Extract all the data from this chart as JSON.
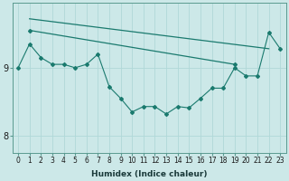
{
  "xlabel": "Humidex (Indice chaleur)",
  "bg_color": "#cce8e8",
  "grid_color": "#b0d8d8",
  "line_color": "#1a7a6e",
  "x_values": [
    0,
    1,
    2,
    3,
    4,
    5,
    6,
    7,
    8,
    9,
    10,
    11,
    12,
    13,
    14,
    15,
    16,
    17,
    18,
    19,
    20,
    21,
    22,
    23
  ],
  "series1": [
    9.0,
    9.35,
    9.15,
    9.05,
    9.05,
    9.0,
    9.05,
    9.2,
    8.72,
    8.55,
    8.35,
    8.43,
    8.43,
    8.32,
    8.43,
    8.41,
    8.55,
    8.7,
    8.7,
    9.0,
    8.88,
    8.88,
    9.52,
    9.28
  ],
  "series2_x": [
    1,
    22
  ],
  "series2_y": [
    9.72,
    9.28
  ],
  "series3_x": [
    1,
    19
  ],
  "series3_y": [
    9.55,
    9.05
  ],
  "yticks": [
    8,
    9
  ],
  "xticks": [
    0,
    1,
    2,
    3,
    4,
    5,
    6,
    7,
    8,
    9,
    10,
    11,
    12,
    13,
    14,
    15,
    16,
    17,
    18,
    19,
    20,
    21,
    22,
    23
  ],
  "ylim": [
    7.75,
    9.95
  ],
  "xlim": [
    -0.5,
    23.5
  ],
  "tick_fontsize": 5.5,
  "xlabel_fontsize": 6.5
}
